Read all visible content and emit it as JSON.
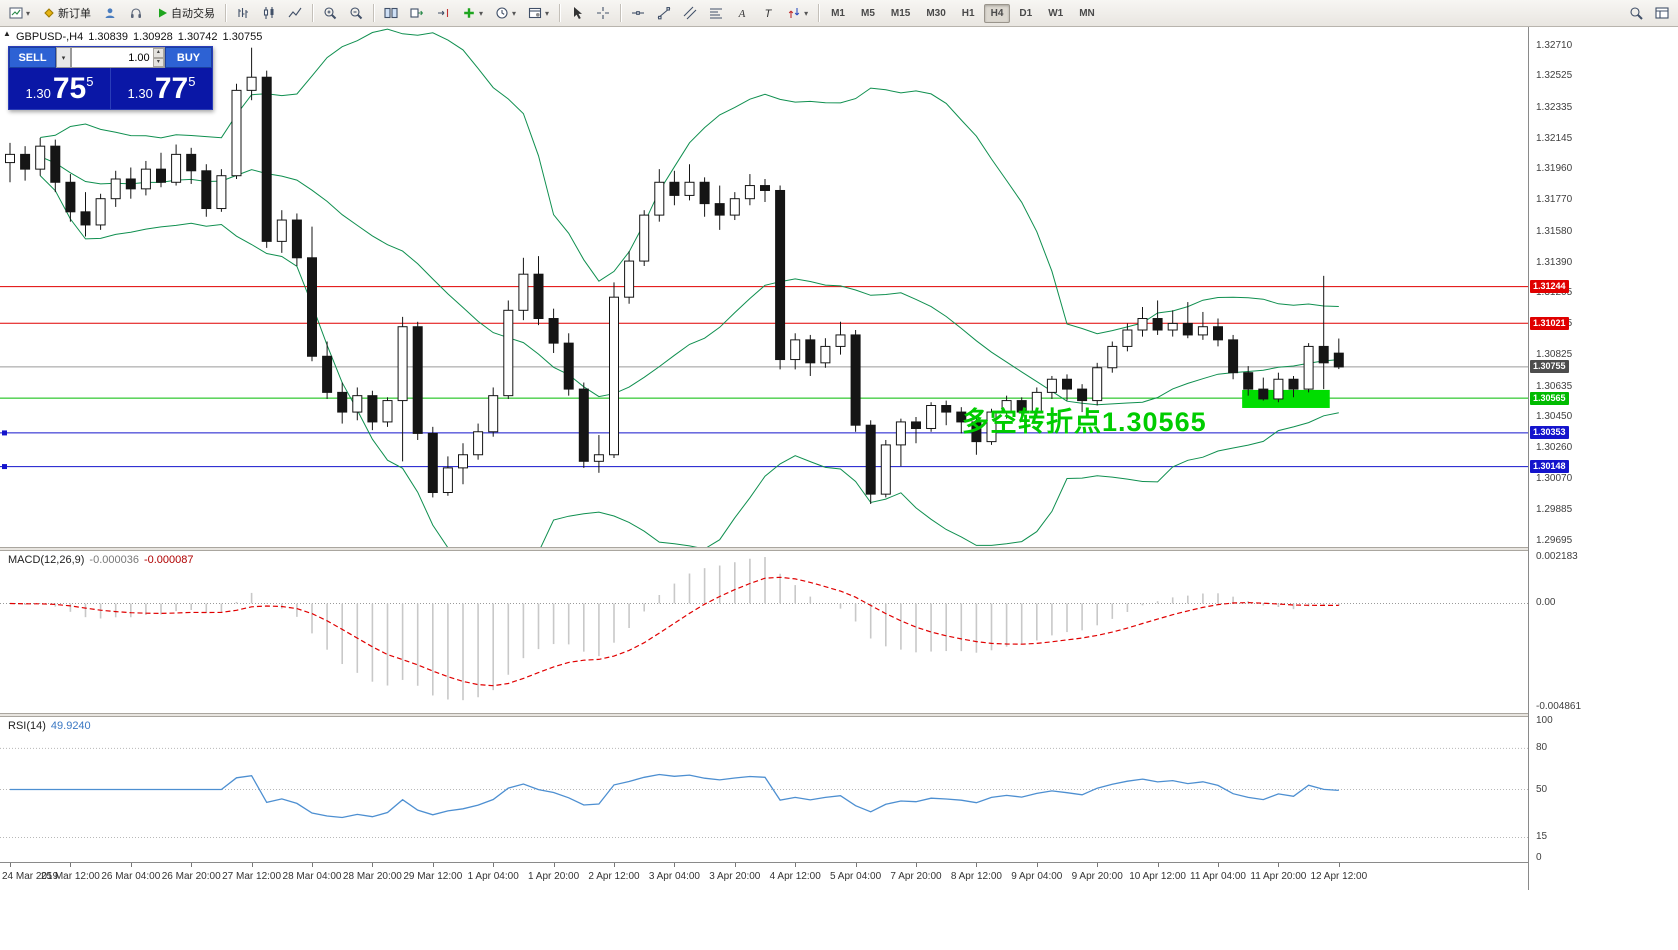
{
  "ui": {
    "caret_down": "▾",
    "caret_up": "▴",
    "expand_marker": "▲"
  },
  "toolbar": {
    "new_order_label": "新订单",
    "autotrading_label": "自动交易",
    "timeframes": [
      "M1",
      "M5",
      "M15",
      "M30",
      "H1",
      "H4",
      "D1",
      "W1",
      "MN"
    ],
    "active_timeframe": "H4"
  },
  "chart_header": {
    "symbol_period": "GBPUSD-,H4",
    "open": "1.30839",
    "high": "1.30928",
    "low": "1.30742",
    "close": "1.30755"
  },
  "trade_panel": {
    "sell_label": "SELL",
    "buy_label": "BUY",
    "volume": "1.00",
    "sell_price": {
      "base": "1.30",
      "pips": "75",
      "pipette": "5"
    },
    "buy_price": {
      "base": "1.30",
      "pips": "77",
      "pipette": "5"
    },
    "panel_bg": "#0a17a6",
    "button_bg": "#2d62d4"
  },
  "annotation": {
    "text": "多空转折点1.30565",
    "color": "#00cc00"
  },
  "chart_data": [
    {
      "type": "candlestick",
      "symbol": "GBPUSD-",
      "timeframe": "H4",
      "y_min": 1.29658,
      "y_max": 1.32826,
      "y_ticks": [
        "1.32710",
        "1.32525",
        "1.32335",
        "1.32145",
        "1.31960",
        "1.31770",
        "1.31580",
        "1.31390",
        "1.31205",
        "1.31015",
        "1.30825",
        "1.30635",
        "1.30450",
        "1.30260",
        "1.30070",
        "1.29885",
        "1.29695"
      ],
      "x_labels": [
        "24 Mar 2019",
        "25 Mar 12:00",
        "26 Mar 04:00",
        "26 Mar 20:00",
        "27 Mar 12:00",
        "28 Mar 04:00",
        "28 Mar 20:00",
        "29 Mar 12:00",
        "1 Apr 04:00",
        "1 Apr 20:00",
        "2 Apr 12:00",
        "3 Apr 04:00",
        "3 Apr 20:00",
        "4 Apr 12:00",
        "5 Apr 04:00",
        "7 Apr 20:00",
        "8 Apr 12:00",
        "9 Apr 04:00",
        "9 Apr 20:00",
        "10 Apr 12:00",
        "11 Apr 04:00",
        "11 Apr 20:00",
        "12 Apr 12:00"
      ],
      "bollinger": {
        "period": 20,
        "deviation": 2,
        "color": "#0f8f4f"
      },
      "hlines": [
        {
          "price": 1.31244,
          "label": "1.31244",
          "color": "#e00000"
        },
        {
          "price": 1.31021,
          "label": "1.31021",
          "color": "#e00000"
        },
        {
          "price": 1.30565,
          "label": "1.30565",
          "color": "#00bb00"
        },
        {
          "price": 1.30353,
          "label": "1.30353",
          "color": "#1414cc",
          "handle": true
        },
        {
          "price": 1.30148,
          "label": "1.30148",
          "color": "#1414cc",
          "handle": true
        }
      ],
      "current_price": {
        "value": 1.30755,
        "label": "1.30755",
        "line_color": "#9a9a9a",
        "tag_bg": "#4d4d4d"
      },
      "highlight_rect": {
        "index_from": 81.6,
        "index_to": 87.4,
        "price_top": 1.30615,
        "price_bottom": 1.30505,
        "color": "#00dd00"
      },
      "ohlc": [
        [
          1.32,
          1.3212,
          1.3188,
          1.3205
        ],
        [
          1.3205,
          1.321,
          1.3189,
          1.3196
        ],
        [
          1.3196,
          1.3215,
          1.3192,
          1.321
        ],
        [
          1.321,
          1.3214,
          1.3182,
          1.3188
        ],
        [
          1.3188,
          1.3193,
          1.3164,
          1.317
        ],
        [
          1.317,
          1.3182,
          1.3155,
          1.3162
        ],
        [
          1.3162,
          1.3181,
          1.3159,
          1.3178
        ],
        [
          1.3178,
          1.3195,
          1.3173,
          1.319
        ],
        [
          1.319,
          1.3197,
          1.3178,
          1.3184
        ],
        [
          1.3184,
          1.3201,
          1.318,
          1.3196
        ],
        [
          1.3196,
          1.3206,
          1.3185,
          1.3188
        ],
        [
          1.3188,
          1.3211,
          1.3186,
          1.3205
        ],
        [
          1.3205,
          1.3209,
          1.3187,
          1.3195
        ],
        [
          1.3195,
          1.3199,
          1.3167,
          1.3172
        ],
        [
          1.3172,
          1.3196,
          1.317,
          1.3192
        ],
        [
          1.3192,
          1.3248,
          1.319,
          1.3244
        ],
        [
          1.3244,
          1.327,
          1.3238,
          1.3252
        ],
        [
          1.3252,
          1.3256,
          1.3148,
          1.3152
        ],
        [
          1.3152,
          1.3171,
          1.3145,
          1.3165
        ],
        [
          1.3165,
          1.3169,
          1.3137,
          1.3142
        ],
        [
          1.3142,
          1.3161,
          1.3079,
          1.3082
        ],
        [
          1.3082,
          1.3091,
          1.3056,
          1.306
        ],
        [
          1.306,
          1.3066,
          1.3041,
          1.3048
        ],
        [
          1.3048,
          1.3063,
          1.3043,
          1.3058
        ],
        [
          1.3058,
          1.3061,
          1.3037,
          1.3042
        ],
        [
          1.3042,
          1.3057,
          1.3039,
          1.3055
        ],
        [
          1.3055,
          1.3106,
          1.3018,
          1.31
        ],
        [
          1.31,
          1.3103,
          1.3031,
          1.3035
        ],
        [
          1.3035,
          1.3039,
          1.2996,
          1.2999
        ],
        [
          1.2999,
          1.3021,
          1.2997,
          1.3014
        ],
        [
          1.3014,
          1.3029,
          1.3004,
          1.3022
        ],
        [
          1.3022,
          1.3041,
          1.3019,
          1.3036
        ],
        [
          1.3036,
          1.3063,
          1.3033,
          1.3058
        ],
        [
          1.3058,
          1.3116,
          1.3056,
          1.311
        ],
        [
          1.311,
          1.3142,
          1.3104,
          1.3132
        ],
        [
          1.3132,
          1.3143,
          1.3101,
          1.3105
        ],
        [
          1.3105,
          1.3111,
          1.3084,
          1.309
        ],
        [
          1.309,
          1.3096,
          1.3058,
          1.3062
        ],
        [
          1.3062,
          1.3066,
          1.3014,
          1.3018
        ],
        [
          1.3018,
          1.3034,
          1.3011,
          1.3022
        ],
        [
          1.3022,
          1.3127,
          1.302,
          1.3118
        ],
        [
          1.3118,
          1.3146,
          1.3114,
          1.314
        ],
        [
          1.314,
          1.3171,
          1.3137,
          1.3168
        ],
        [
          1.3168,
          1.3196,
          1.3164,
          1.3188
        ],
        [
          1.3188,
          1.3195,
          1.3174,
          1.318
        ],
        [
          1.318,
          1.3199,
          1.3177,
          1.3188
        ],
        [
          1.3188,
          1.3191,
          1.3167,
          1.3175
        ],
        [
          1.3175,
          1.3186,
          1.3159,
          1.3168
        ],
        [
          1.3168,
          1.3182,
          1.3165,
          1.3178
        ],
        [
          1.3178,
          1.3193,
          1.3174,
          1.3186
        ],
        [
          1.3186,
          1.319,
          1.3176,
          1.3183
        ],
        [
          1.3183,
          1.3186,
          1.3074,
          1.308
        ],
        [
          1.308,
          1.3096,
          1.3074,
          1.3092
        ],
        [
          1.3092,
          1.3095,
          1.307,
          1.3078
        ],
        [
          1.3078,
          1.3093,
          1.3075,
          1.3088
        ],
        [
          1.3088,
          1.3103,
          1.3083,
          1.3095
        ],
        [
          1.3095,
          1.3098,
          1.3036,
          1.304
        ],
        [
          1.304,
          1.3043,
          1.2992,
          1.2998
        ],
        [
          1.2998,
          1.3031,
          1.2996,
          1.3028
        ],
        [
          1.3028,
          1.3044,
          1.3015,
          1.3042
        ],
        [
          1.3042,
          1.3045,
          1.3029,
          1.3038
        ],
        [
          1.3038,
          1.3054,
          1.3036,
          1.3052
        ],
        [
          1.3052,
          1.3055,
          1.304,
          1.3048
        ],
        [
          1.3048,
          1.3051,
          1.3035,
          1.3042
        ],
        [
          1.3042,
          1.3046,
          1.3022,
          1.303
        ],
        [
          1.303,
          1.305,
          1.3028,
          1.3048
        ],
        [
          1.3048,
          1.3058,
          1.3044,
          1.3055
        ],
        [
          1.3055,
          1.3057,
          1.3042,
          1.3048
        ],
        [
          1.3048,
          1.3063,
          1.3045,
          1.306
        ],
        [
          1.306,
          1.307,
          1.3056,
          1.3068
        ],
        [
          1.3068,
          1.3071,
          1.3055,
          1.3062
        ],
        [
          1.3062,
          1.3065,
          1.3048,
          1.3055
        ],
        [
          1.3055,
          1.3078,
          1.3052,
          1.3075
        ],
        [
          1.3075,
          1.3091,
          1.3072,
          1.3088
        ],
        [
          1.3088,
          1.3102,
          1.3085,
          1.3098
        ],
        [
          1.3098,
          1.3112,
          1.3094,
          1.3105
        ],
        [
          1.3105,
          1.3116,
          1.3095,
          1.3098
        ],
        [
          1.3098,
          1.311,
          1.3094,
          1.3102
        ],
        [
          1.3102,
          1.3115,
          1.3093,
          1.3095
        ],
        [
          1.3095,
          1.3109,
          1.3092,
          1.31
        ],
        [
          1.31,
          1.3105,
          1.3088,
          1.3092
        ],
        [
          1.3092,
          1.3095,
          1.3068,
          1.3072
        ],
        [
          1.3072,
          1.3076,
          1.3058,
          1.3062
        ],
        [
          1.3062,
          1.3069,
          1.3055,
          1.3056
        ],
        [
          1.3056,
          1.3072,
          1.3054,
          1.3068
        ],
        [
          1.3068,
          1.307,
          1.3057,
          1.3062
        ],
        [
          1.3062,
          1.309,
          1.306,
          1.3088
        ],
        [
          1.3088,
          1.3131,
          1.3062,
          1.3078
        ],
        [
          1.30839,
          1.30928,
          1.30742,
          1.30755
        ]
      ]
    },
    {
      "type": "macd",
      "label": "MACD(12,26,9)",
      "display_main": "-0.000036",
      "display_signal": "-0.000087",
      "params": [
        12,
        26,
        9
      ],
      "y_max": 0.002183,
      "y_min": -0.004861,
      "y_ticks": [
        {
          "v": 0.002183,
          "label": "0.002183"
        },
        {
          "v": 0,
          "label": "0.00"
        },
        {
          "v": -0.004861,
          "label": "-0.004861"
        }
      ],
      "histogram_color": "#c8c8c8",
      "signal_color": "#e00000"
    },
    {
      "type": "rsi",
      "label": "RSI(14)",
      "display_value": "49.9240",
      "period": 14,
      "y_min": 0,
      "y_max": 100,
      "y_ticks": [
        {
          "v": 100,
          "label": "100"
        },
        {
          "v": 80,
          "label": "80"
        },
        {
          "v": 50,
          "label": "50"
        },
        {
          "v": 15,
          "label": "15"
        },
        {
          "v": 0,
          "label": "0"
        }
      ],
      "levels": [
        80,
        50,
        15
      ],
      "line_color": "#4d8fd1"
    }
  ]
}
